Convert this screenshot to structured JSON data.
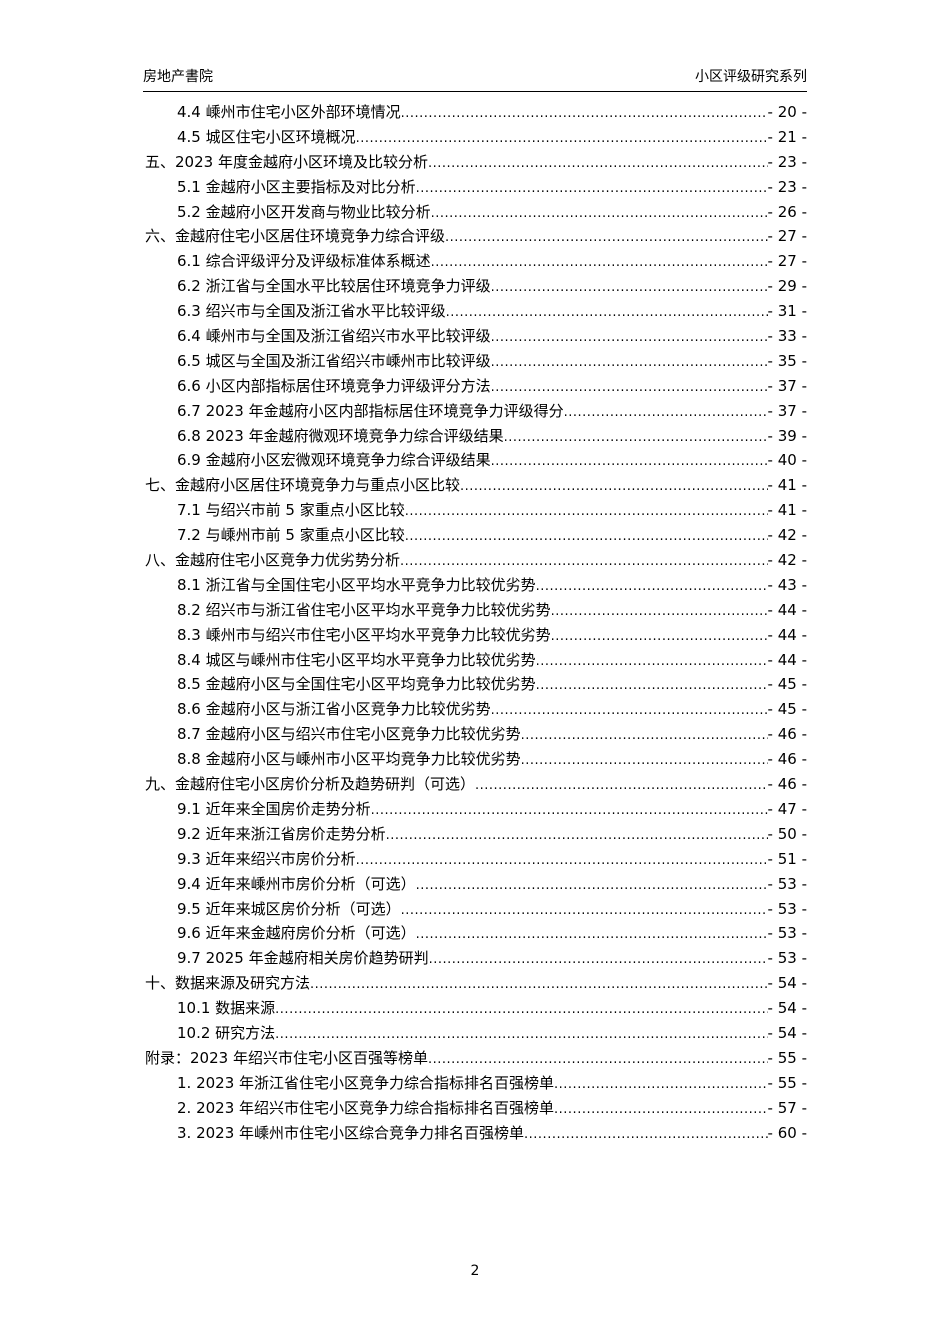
{
  "header": {
    "left": "房地产書院",
    "right": "小区评级研究系列"
  },
  "toc": [
    {
      "level": 2,
      "title": "4.4 嵊州市住宅小区外部环境情况",
      "page": "- 20 -"
    },
    {
      "level": 2,
      "title": "4.5 城区住宅小区环境概况",
      "page": "- 21 -"
    },
    {
      "level": 1,
      "title": "五、2023 年度金越府小区环境及比较分析",
      "page": "- 23 -"
    },
    {
      "level": 2,
      "title": "5.1 金越府小区主要指标及对比分析",
      "page": "- 23 -"
    },
    {
      "level": 2,
      "title": "5.2 金越府小区开发商与物业比较分析",
      "page": "- 26 -"
    },
    {
      "level": 1,
      "title": "六、金越府住宅小区居住环境竞争力综合评级",
      "page": "- 27 -"
    },
    {
      "level": 2,
      "title": "6.1 综合评级评分及评级标准体系概述",
      "page": "- 27 -"
    },
    {
      "level": 2,
      "title": "6.2 浙江省与全国水平比较居住环境竞争力评级",
      "page": "- 29 -"
    },
    {
      "level": 2,
      "title": "6.3 绍兴市与全国及浙江省水平比较评级",
      "page": "- 31 -"
    },
    {
      "level": 2,
      "title": "6.4 嵊州市与全国及浙江省绍兴市水平比较评级",
      "page": "- 33 -"
    },
    {
      "level": 2,
      "title": "6.5 城区与全国及浙江省绍兴市嵊州市比较评级",
      "page": "- 35 -"
    },
    {
      "level": 2,
      "title": "6.6 小区内部指标居住环境竞争力评级评分方法",
      "page": "- 37 -"
    },
    {
      "level": 2,
      "title": "6.7 2023 年金越府小区内部指标居住环境竞争力评级得分",
      "page": "- 37 -"
    },
    {
      "level": 2,
      "title": "6.8 2023 年金越府微观环境竞争力综合评级结果",
      "page": "- 39 -"
    },
    {
      "level": 2,
      "title": "6.9 金越府小区宏微观环境竞争力综合评级结果",
      "page": "- 40 -"
    },
    {
      "level": 1,
      "title": "七、金越府小区居住环境竞争力与重点小区比较",
      "page": "- 41 -"
    },
    {
      "level": 2,
      "title": "7.1 与绍兴市前 5 家重点小区比较",
      "page": "- 41 -"
    },
    {
      "level": 2,
      "title": "7.2 与嵊州市前 5 家重点小区比较",
      "page": "- 42 -"
    },
    {
      "level": 1,
      "title": "八、金越府住宅小区竞争力优劣势分析",
      "page": "- 42 -"
    },
    {
      "level": 2,
      "title": "8.1 浙江省与全国住宅小区平均水平竞争力比较优劣势",
      "page": "- 43 -"
    },
    {
      "level": 2,
      "title": "8.2 绍兴市与浙江省住宅小区平均水平竞争力比较优劣势",
      "page": "- 44 -"
    },
    {
      "level": 2,
      "title": "8.3 嵊州市与绍兴市住宅小区平均水平竞争力比较优劣势",
      "page": "- 44 -"
    },
    {
      "level": 2,
      "title": "8.4 城区与嵊州市住宅小区平均水平竞争力比较优劣势",
      "page": "- 44 -"
    },
    {
      "level": 2,
      "title": "8.5 金越府小区与全国住宅小区平均竞争力比较优劣势",
      "page": "- 45 -"
    },
    {
      "level": 2,
      "title": "8.6 金越府小区与浙江省小区竞争力比较优劣势",
      "page": "- 45 -"
    },
    {
      "level": 2,
      "title": "8.7 金越府小区与绍兴市住宅小区竞争力比较优劣势",
      "page": "- 46 -"
    },
    {
      "level": 2,
      "title": "8.8 金越府小区与嵊州市小区平均竞争力比较优劣势",
      "page": "- 46 -"
    },
    {
      "level": 1,
      "title": "九、金越府住宅小区房价分析及趋势研判（可选）",
      "page": "- 46 -"
    },
    {
      "level": 2,
      "title": "9.1 近年来全国房价走势分析",
      "page": "- 47 -"
    },
    {
      "level": 2,
      "title": "9.2 近年来浙江省房价走势分析",
      "page": "- 50 -"
    },
    {
      "level": 2,
      "title": "9.3 近年来绍兴市房价分析",
      "page": "- 51 -"
    },
    {
      "level": 2,
      "title": "9.4 近年来嵊州市房价分析（可选）",
      "page": "- 53 -"
    },
    {
      "level": 2,
      "title": "9.5 近年来城区房价分析（可选）",
      "page": "- 53 -"
    },
    {
      "level": 2,
      "title": "9.6 近年来金越府房价分析（可选）",
      "page": "- 53 -"
    },
    {
      "level": 2,
      "title": "9.7 2025 年金越府相关房价趋势研判",
      "page": "- 53 -"
    },
    {
      "level": 1,
      "title": "十、数据来源及研究方法",
      "page": "- 54 -"
    },
    {
      "level": 2,
      "title": "10.1 数据来源",
      "page": "- 54 -"
    },
    {
      "level": 2,
      "title": "10.2 研究方法",
      "page": "- 54 -"
    },
    {
      "level": 1,
      "title": "附录：2023 年绍兴市住宅小区百强等榜单",
      "page": "- 55 -"
    },
    {
      "level": 2,
      "title": "1. 2023 年浙江省住宅小区竞争力综合指标排名百强榜单",
      "page": "- 55 -"
    },
    {
      "level": 2,
      "title": "2. 2023 年绍兴市住宅小区竞争力综合指标排名百强榜单",
      "page": "- 57 -"
    },
    {
      "level": 2,
      "title": "3. 2023 年嵊州市住宅小区综合竞争力排名百强榜单",
      "page": "- 60 -"
    }
  ],
  "page_number": "2"
}
